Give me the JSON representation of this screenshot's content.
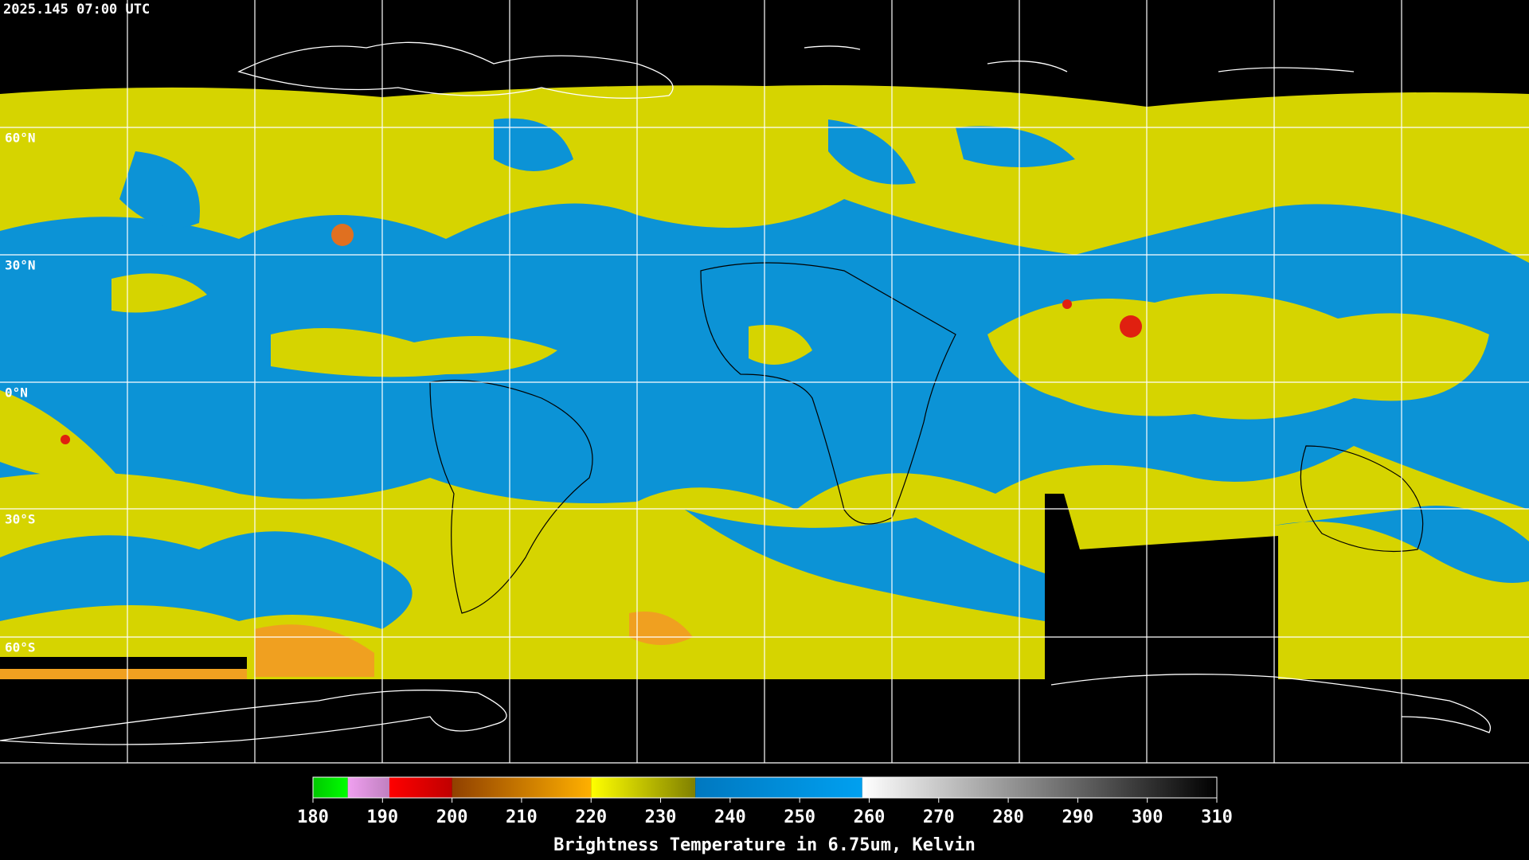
{
  "header": {
    "title": "2025.145 07:00 UTC"
  },
  "map": {
    "lat_labels": [
      "60°N",
      "30°N",
      "0°N",
      "30°S",
      "60°S"
    ]
  },
  "colorbar": {
    "range": [
      180,
      310
    ],
    "ticks": [
      180,
      190,
      200,
      210,
      220,
      230,
      240,
      250,
      260,
      270,
      280,
      290,
      300,
      310
    ],
    "label": "Brightness Temperature in 6.75um, Kelvin",
    "segments": [
      {
        "from": 180,
        "to": 185,
        "colors": [
          "#00c800",
          "#00ff00"
        ]
      },
      {
        "from": 185,
        "to": 191,
        "colors": [
          "#f0a0f0",
          "#c080c0"
        ]
      },
      {
        "from": 191,
        "to": 200,
        "colors": [
          "#ff0000",
          "#c00000"
        ]
      },
      {
        "from": 200,
        "to": 220,
        "colors": [
          "#904000",
          "#ffb000"
        ]
      },
      {
        "from": 220,
        "to": 235,
        "colors": [
          "#ffff00",
          "#808000"
        ]
      },
      {
        "from": 235,
        "to": 259,
        "colors": [
          "#0078c0",
          "#00a0f0"
        ]
      },
      {
        "from": 259,
        "to": 310,
        "colors": [
          "#ffffff",
          "#000000"
        ]
      }
    ]
  }
}
